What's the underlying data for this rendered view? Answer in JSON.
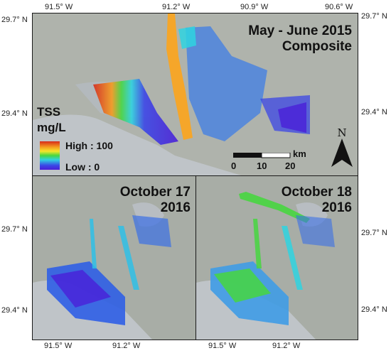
{
  "axes": {
    "top_lon": [
      "91.5° W",
      "91.2° W",
      "90.9° W",
      "90.6° W"
    ],
    "bottom_lon": [
      "91.5° W",
      "91.2° W",
      "91.5° W",
      "91.2° W"
    ],
    "left_lat_top": [
      "29.7° N",
      "29.4° N"
    ],
    "right_lat_top": [
      "29.7° N",
      "29.4° N"
    ],
    "left_lat_bottom": [
      "29.7° N",
      "29.4° N"
    ],
    "right_lat_bottom": [
      "29.7° N",
      "29.4° N"
    ]
  },
  "panels": {
    "top": {
      "title_line1": "May - June 2015",
      "title_line2": "Composite"
    },
    "bottom_left": {
      "title_line1": "October 17",
      "title_line2": "2016"
    },
    "bottom_right": {
      "title_line1": "October 18",
      "title_line2": "2016"
    }
  },
  "legend": {
    "title_line1": "TSS",
    "title_line2": "mg/L",
    "high": "High : 100",
    "low": "Low : 0",
    "colors": [
      "#d62a1a",
      "#f59b1f",
      "#f5e62a",
      "#47d640",
      "#2fd3e0",
      "#3b46e6",
      "#4a1fd8"
    ]
  },
  "scale_bar": {
    "unit": "km",
    "ticks": [
      "0",
      "10",
      "20"
    ]
  },
  "north_arrow": {
    "label": "N"
  }
}
